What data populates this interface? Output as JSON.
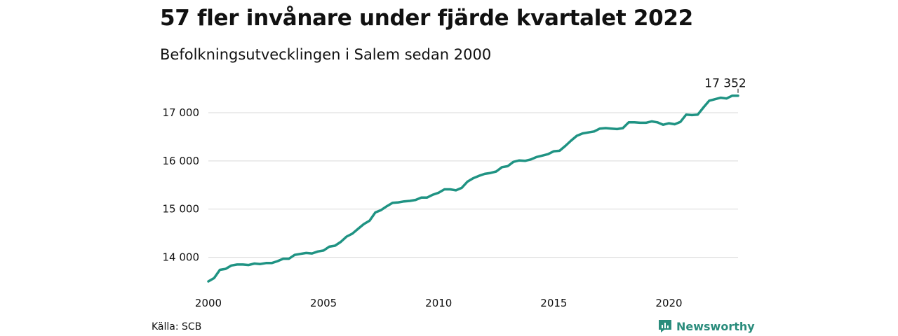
{
  "header": {
    "title": "57 fler invånare under fjärde kvartalet 2022",
    "subtitle": "Befolkningsutvecklingen i Salem sedan 2000"
  },
  "footer": {
    "source": "Källa: SCB",
    "brand": "Newsworthy",
    "brand_icon": "bar-chart-icon"
  },
  "colors": {
    "line": "#1f9383",
    "grid": "#d9d9d9",
    "brand": "#2a8c7c"
  },
  "chart_data": {
    "type": "line",
    "title": "57 fler invånare under fjärde kvartalet 2022",
    "subtitle": "Befolkningsutvecklingen i Salem sedan 2000",
    "xlabel": "",
    "ylabel": "",
    "xlim": [
      2000,
      2023
    ],
    "ylim": [
      13500,
      17450
    ],
    "x_ticks": [
      2000,
      2005,
      2010,
      2015,
      2020
    ],
    "x_tick_labels": [
      "2000",
      "2005",
      "2010",
      "2015",
      "2020"
    ],
    "y_ticks": [
      14000,
      15000,
      16000,
      17000
    ],
    "y_tick_labels": [
      "14 000",
      "15 000",
      "16 000",
      "17 000"
    ],
    "grid": "horizontal",
    "end_label": "17 352",
    "series": [
      {
        "x": [
          2000.0,
          2000.25,
          2000.5,
          2000.75,
          2001.0,
          2001.25,
          2001.5,
          2001.75,
          2002.0,
          2002.25,
          2002.5,
          2002.75,
          2003.0,
          2003.25,
          2003.5,
          2003.75,
          2004.0,
          2004.25,
          2004.5,
          2004.75,
          2005.0,
          2005.25,
          2005.5,
          2005.75,
          2006.0,
          2006.25,
          2006.5,
          2006.75,
          2007.0,
          2007.25,
          2007.5,
          2007.75,
          2008.0,
          2008.25,
          2008.5,
          2008.75,
          2009.0,
          2009.25,
          2009.5,
          2009.75,
          2010.0,
          2010.25,
          2010.5,
          2010.75,
          2011.0,
          2011.25,
          2011.5,
          2011.75,
          2012.0,
          2012.25,
          2012.5,
          2012.75,
          2013.0,
          2013.25,
          2013.5,
          2013.75,
          2014.0,
          2014.25,
          2014.5,
          2014.75,
          2015.0,
          2015.25,
          2015.5,
          2015.75,
          2016.0,
          2016.25,
          2016.5,
          2016.75,
          2017.0,
          2017.25,
          2017.5,
          2017.75,
          2018.0,
          2018.25,
          2018.5,
          2018.75,
          2019.0,
          2019.25,
          2019.5,
          2019.75,
          2020.0,
          2020.25,
          2020.5,
          2020.75,
          2021.0,
          2021.25,
          2021.5,
          2021.75,
          2022.0,
          2022.25,
          2022.5,
          2022.75,
          2023.0
        ],
        "values": [
          13500,
          13570,
          13740,
          13760,
          13830,
          13850,
          13850,
          13840,
          13870,
          13860,
          13880,
          13880,
          13920,
          13970,
          13970,
          14050,
          14070,
          14090,
          14080,
          14120,
          14140,
          14220,
          14240,
          14320,
          14430,
          14490,
          14590,
          14690,
          14760,
          14930,
          14980,
          15060,
          15130,
          15140,
          15160,
          15170,
          15190,
          15240,
          15240,
          15300,
          15340,
          15410,
          15410,
          15390,
          15440,
          15570,
          15640,
          15690,
          15730,
          15750,
          15780,
          15870,
          15890,
          15980,
          16010,
          16000,
          16030,
          16080,
          16110,
          16140,
          16200,
          16210,
          16310,
          16420,
          16520,
          16570,
          16590,
          16610,
          16670,
          16680,
          16670,
          16660,
          16680,
          16800,
          16800,
          16790,
          16790,
          16820,
          16800,
          16750,
          16780,
          16760,
          16810,
          16960,
          16950,
          16960,
          17110,
          17250,
          17280,
          17310,
          17295,
          17352,
          17352
        ]
      }
    ]
  }
}
